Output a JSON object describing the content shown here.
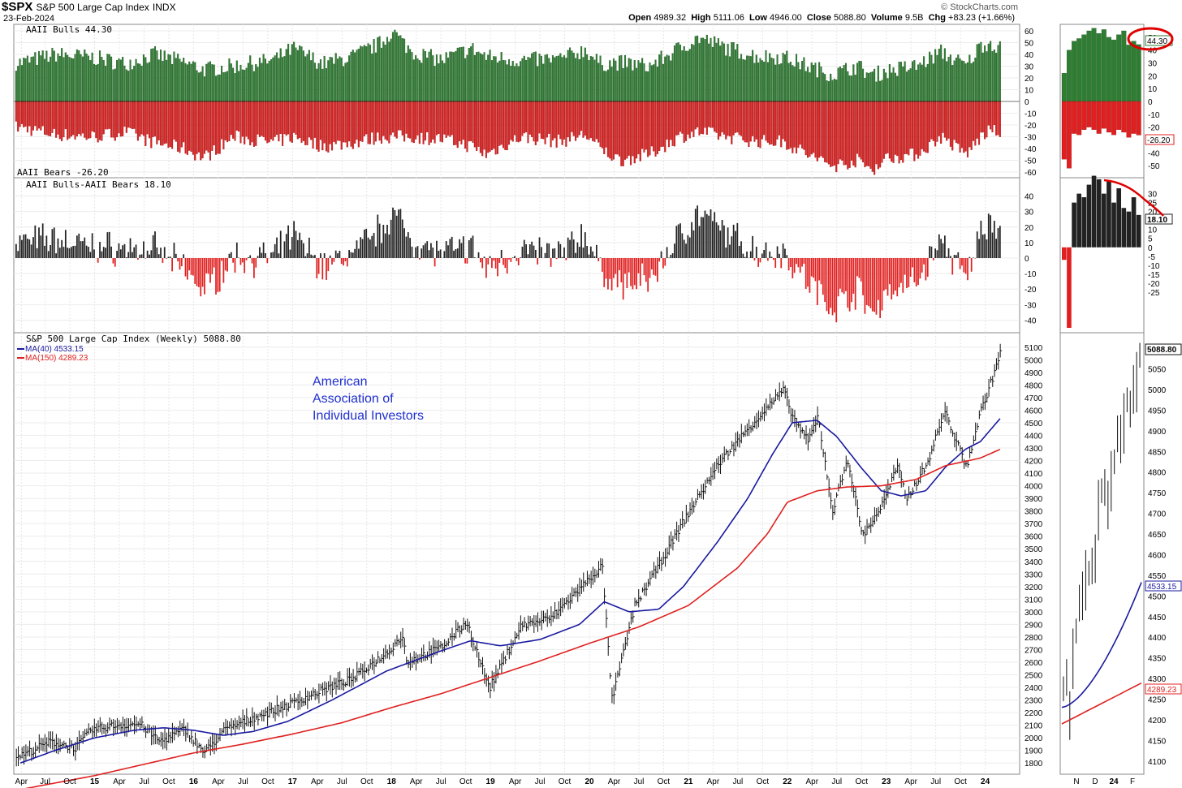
{
  "header": {
    "symbol": "$SPX",
    "name": "S&P 500 Large Cap Index",
    "exchange": "INDX",
    "date": "23-Feb-2024",
    "brand": "© StockCharts.com",
    "open_label": "Open",
    "open": "4989.32",
    "high_label": "High",
    "high": "5111.06",
    "low_label": "Low",
    "low": "4946.00",
    "close_label": "Close",
    "close": "5088.80",
    "volume_label": "Volume",
    "volume": "9.5B",
    "chg_label": "Chg",
    "chg": "+83.23 (+1.66%)"
  },
  "colors": {
    "bull": "#2e7d32",
    "bear": "#e02020",
    "spread_pos": "#222222",
    "ma40": "#1a1aa0",
    "ma150": "#e02020",
    "price": "#111111",
    "annotation": "#2030d0",
    "circle": "#e00000"
  },
  "annotation": [
    "American",
    "Association of",
    "Individual Investors"
  ],
  "chart_data": [
    {
      "type": "bar",
      "panel": "sentiment",
      "title": "AAII Bulls 44.30",
      "title2": "AAII Bears -26.20",
      "series": [
        {
          "name": "AAII Bulls",
          "last": 44.3,
          "anchors": [
            [
              2014.25,
              33
            ],
            [
              2014.6,
              40
            ],
            [
              2015.0,
              37
            ],
            [
              2015.3,
              32
            ],
            [
              2015.6,
              40
            ],
            [
              2015.9,
              33
            ],
            [
              2016.1,
              27
            ],
            [
              2016.4,
              30
            ],
            [
              2016.8,
              35
            ],
            [
              2017.0,
              45
            ],
            [
              2017.3,
              32
            ],
            [
              2017.6,
              38
            ],
            [
              2017.9,
              50
            ],
            [
              2018.0,
              60
            ],
            [
              2018.2,
              42
            ],
            [
              2018.5,
              35
            ],
            [
              2018.8,
              45
            ],
            [
              2018.95,
              38
            ],
            [
              2019.3,
              35
            ],
            [
              2019.7,
              36
            ],
            [
              2019.95,
              44
            ],
            [
              2020.1,
              32
            ],
            [
              2020.3,
              33
            ],
            [
              2020.6,
              30
            ],
            [
              2020.9,
              45
            ],
            [
              2021.1,
              54
            ],
            [
              2021.4,
              45
            ],
            [
              2021.7,
              38
            ],
            [
              2021.95,
              38
            ],
            [
              2022.2,
              30
            ],
            [
              2022.45,
              23
            ],
            [
              2022.7,
              30
            ],
            [
              2022.85,
              22
            ],
            [
              2023.0,
              26
            ],
            [
              2023.3,
              30
            ],
            [
              2023.55,
              42
            ],
            [
              2023.8,
              30
            ],
            [
              2023.95,
              48
            ],
            [
              2024.05,
              50
            ],
            [
              2024.15,
              44.3
            ]
          ]
        },
        {
          "name": "AAII Bears",
          "last": -26.2,
          "anchors": [
            [
              2014.25,
              -22
            ],
            [
              2014.6,
              -28
            ],
            [
              2015.0,
              -30
            ],
            [
              2015.3,
              -26
            ],
            [
              2015.6,
              -35
            ],
            [
              2015.9,
              -40
            ],
            [
              2016.1,
              -48
            ],
            [
              2016.4,
              -30
            ],
            [
              2016.8,
              -35
            ],
            [
              2017.0,
              -30
            ],
            [
              2017.3,
              -38
            ],
            [
              2017.6,
              -35
            ],
            [
              2017.9,
              -30
            ],
            [
              2018.2,
              -30
            ],
            [
              2018.5,
              -32
            ],
            [
              2018.8,
              -38
            ],
            [
              2018.95,
              -45
            ],
            [
              2019.3,
              -30
            ],
            [
              2019.7,
              -34
            ],
            [
              2019.95,
              -28
            ],
            [
              2020.1,
              -40
            ],
            [
              2020.3,
              -50
            ],
            [
              2020.6,
              -45
            ],
            [
              2020.9,
              -30
            ],
            [
              2021.1,
              -26
            ],
            [
              2021.4,
              -30
            ],
            [
              2021.7,
              -34
            ],
            [
              2021.95,
              -34
            ],
            [
              2022.2,
              -45
            ],
            [
              2022.45,
              -55
            ],
            [
              2022.7,
              -50
            ],
            [
              2022.85,
              -58
            ],
            [
              2023.0,
              -48
            ],
            [
              2023.3,
              -45
            ],
            [
              2023.55,
              -30
            ],
            [
              2023.8,
              -45
            ],
            [
              2023.95,
              -30
            ],
            [
              2024.05,
              -25
            ],
            [
              2024.15,
              -26.2
            ]
          ]
        }
      ],
      "ylim": [
        -60,
        60
      ],
      "yticks": [
        60,
        50,
        40,
        30,
        20,
        10,
        0,
        -10,
        -20,
        -30,
        -40,
        -50,
        -60
      ],
      "zoom_yticks": [
        50,
        40,
        30,
        20,
        10,
        0,
        -10,
        -20,
        -30,
        -40,
        -50
      ]
    },
    {
      "type": "bar",
      "panel": "spread",
      "title": "AAII Bulls-AAII Bears 18.10",
      "series": [
        {
          "name": "AAII Bulls-AAII Bears",
          "last": 18.1
        }
      ],
      "ylim": [
        -45,
        45
      ],
      "yticks": [
        40,
        30,
        20,
        10,
        0,
        -10,
        -20,
        -30,
        -40
      ],
      "zoom_yticks": [
        30,
        25,
        20,
        15,
        10,
        5,
        0,
        -5,
        -10,
        -15,
        -20,
        -25
      ],
      "zoom_values": [
        -7,
        -45,
        25,
        30,
        28,
        35,
        40,
        38,
        30,
        37,
        25,
        33,
        22,
        20,
        28,
        18.1
      ]
    },
    {
      "type": "line",
      "panel": "price",
      "title": "S&P 500 Large Cap Index (Weekly) 5088.80",
      "series": [
        {
          "name": "MA(40)",
          "label": "MA(40) 4533.15",
          "last": 4533.15,
          "anchors": [
            [
              2014.25,
              1800
            ],
            [
              2014.6,
              1900
            ],
            [
              2015.0,
              2000
            ],
            [
              2015.4,
              2060
            ],
            [
              2015.7,
              2080
            ],
            [
              2016.0,
              2060
            ],
            [
              2016.3,
              2020
            ],
            [
              2016.6,
              2050
            ],
            [
              2016.95,
              2130
            ],
            [
              2017.4,
              2300
            ],
            [
              2017.95,
              2530
            ],
            [
              2018.5,
              2690
            ],
            [
              2018.8,
              2770
            ],
            [
              2019.1,
              2730
            ],
            [
              2019.5,
              2780
            ],
            [
              2019.9,
              2900
            ],
            [
              2020.15,
              3080
            ],
            [
              2020.4,
              3000
            ],
            [
              2020.7,
              3020
            ],
            [
              2020.95,
              3200
            ],
            [
              2021.3,
              3560
            ],
            [
              2021.6,
              3900
            ],
            [
              2021.85,
              4250
            ],
            [
              2022.05,
              4500
            ],
            [
              2022.3,
              4520
            ],
            [
              2022.5,
              4390
            ],
            [
              2022.75,
              4140
            ],
            [
              2022.95,
              3960
            ],
            [
              2023.15,
              3920
            ],
            [
              2023.4,
              3960
            ],
            [
              2023.6,
              4150
            ],
            [
              2023.8,
              4290
            ],
            [
              2023.95,
              4350
            ],
            [
              2024.15,
              4533
            ]
          ]
        },
        {
          "name": "MA(150)",
          "label": "MA(150) 4289.23",
          "last": 4289.23,
          "anchors": [
            [
              2014.25,
              1590
            ],
            [
              2015.0,
              1700
            ],
            [
              2015.5,
              1790
            ],
            [
              2016.0,
              1880
            ],
            [
              2016.5,
              1950
            ],
            [
              2017.0,
              2030
            ],
            [
              2017.5,
              2120
            ],
            [
              2018.0,
              2240
            ],
            [
              2018.5,
              2350
            ],
            [
              2019.0,
              2480
            ],
            [
              2019.5,
              2610
            ],
            [
              2020.0,
              2750
            ],
            [
              2020.5,
              2880
            ],
            [
              2021.0,
              3050
            ],
            [
              2021.5,
              3350
            ],
            [
              2021.8,
              3620
            ],
            [
              2022.0,
              3870
            ],
            [
              2022.3,
              3960
            ],
            [
              2022.6,
              3990
            ],
            [
              2022.95,
              4000
            ],
            [
              2023.3,
              4050
            ],
            [
              2023.6,
              4160
            ],
            [
              2023.95,
              4220
            ],
            [
              2024.15,
              4289
            ]
          ]
        },
        {
          "name": "Price",
          "last": 5088.8,
          "anchors": [
            [
              2014.25,
              1860
            ],
            [
              2014.55,
              1970
            ],
            [
              2014.8,
              1920
            ],
            [
              2014.95,
              2060
            ],
            [
              2015.2,
              2100
            ],
            [
              2015.45,
              2110
            ],
            [
              2015.65,
              1970
            ],
            [
              2015.9,
              2070
            ],
            [
              2016.1,
              1880
            ],
            [
              2016.3,
              2060
            ],
            [
              2016.6,
              2160
            ],
            [
              2016.95,
              2260
            ],
            [
              2017.3,
              2380
            ],
            [
              2017.6,
              2470
            ],
            [
              2017.95,
              2680
            ],
            [
              2018.1,
              2810
            ],
            [
              2018.15,
              2600
            ],
            [
              2018.5,
              2720
            ],
            [
              2018.75,
              2920
            ],
            [
              2018.98,
              2390
            ],
            [
              2019.3,
              2890
            ],
            [
              2019.6,
              2950
            ],
            [
              2019.95,
              3230
            ],
            [
              2020.12,
              3370
            ],
            [
              2020.22,
              2300
            ],
            [
              2020.45,
              3050
            ],
            [
              2020.7,
              3380
            ],
            [
              2020.95,
              3730
            ],
            [
              2021.3,
              4180
            ],
            [
              2021.6,
              4460
            ],
            [
              2021.95,
              4760
            ],
            [
              2022.05,
              4540
            ],
            [
              2022.2,
              4350
            ],
            [
              2022.3,
              4550
            ],
            [
              2022.45,
              3800
            ],
            [
              2022.6,
              4220
            ],
            [
              2022.75,
              3600
            ],
            [
              2022.95,
              3850
            ],
            [
              2023.1,
              4150
            ],
            [
              2023.2,
              3900
            ],
            [
              2023.4,
              4170
            ],
            [
              2023.58,
              4590
            ],
            [
              2023.8,
              4150
            ],
            [
              2023.95,
              4600
            ],
            [
              2024.08,
              4890
            ],
            [
              2024.15,
              5088
            ]
          ]
        }
      ],
      "ylim": [
        1750,
        5150
      ],
      "yticks": [
        1800,
        1900,
        2000,
        2100,
        2200,
        2300,
        2400,
        2500,
        2600,
        2700,
        2800,
        2900,
        3000,
        3100,
        3200,
        3300,
        3400,
        3500,
        3600,
        3700,
        3800,
        3900,
        4000,
        4100,
        4200,
        4300,
        4400,
        4500,
        4600,
        4700,
        4800,
        4900,
        5000,
        5100
      ],
      "zoom_yticks": [
        4100,
        4150,
        4200,
        4250,
        4300,
        4350,
        4400,
        4450,
        4500,
        4550,
        4600,
        4650,
        4700,
        4750,
        4800,
        4850,
        4900,
        4950,
        5000,
        5050
      ],
      "zoom_top_tick": "5100",
      "zoom_price": [
        4280,
        4310,
        4220,
        4360,
        4420,
        4490,
        4510,
        4550,
        4560,
        4580,
        4600,
        4720,
        4760,
        4770,
        4730,
        4790,
        4830,
        4900,
        4890,
        4930,
        4980,
        4960,
        5010,
        5030,
        5088
      ]
    }
  ],
  "x_axis": {
    "labels": [
      {
        "t": 2014.26,
        "l": "Apr"
      },
      {
        "t": 2014.5,
        "l": "Jul"
      },
      {
        "t": 2014.75,
        "l": "Oct"
      },
      {
        "t": 2015.0,
        "l": "15",
        "bold": true
      },
      {
        "t": 2015.25,
        "l": "Apr"
      },
      {
        "t": 2015.5,
        "l": "Jul"
      },
      {
        "t": 2015.75,
        "l": "Oct"
      },
      {
        "t": 2016.0,
        "l": "16",
        "bold": true
      },
      {
        "t": 2016.25,
        "l": "Apr"
      },
      {
        "t": 2016.5,
        "l": "Jul"
      },
      {
        "t": 2016.75,
        "l": "Oct"
      },
      {
        "t": 2017.0,
        "l": "17",
        "bold": true
      },
      {
        "t": 2017.25,
        "l": "Apr"
      },
      {
        "t": 2017.5,
        "l": "Jul"
      },
      {
        "t": 2017.75,
        "l": "Oct"
      },
      {
        "t": 2018.0,
        "l": "18",
        "bold": true
      },
      {
        "t": 2018.25,
        "l": "Apr"
      },
      {
        "t": 2018.5,
        "l": "Jul"
      },
      {
        "t": 2018.75,
        "l": "Oct"
      },
      {
        "t": 2019.0,
        "l": "19",
        "bold": true
      },
      {
        "t": 2019.25,
        "l": "Apr"
      },
      {
        "t": 2019.5,
        "l": "Jul"
      },
      {
        "t": 2019.75,
        "l": "Oct"
      },
      {
        "t": 2020.0,
        "l": "20",
        "bold": true
      },
      {
        "t": 2020.25,
        "l": "Apr"
      },
      {
        "t": 2020.5,
        "l": "Jul"
      },
      {
        "t": 2020.75,
        "l": "Oct"
      },
      {
        "t": 2021.0,
        "l": "21",
        "bold": true
      },
      {
        "t": 2021.25,
        "l": "Apr"
      },
      {
        "t": 2021.5,
        "l": "Jul"
      },
      {
        "t": 2021.75,
        "l": "Oct"
      },
      {
        "t": 2022.0,
        "l": "22",
        "bold": true
      },
      {
        "t": 2022.25,
        "l": "Apr"
      },
      {
        "t": 2022.5,
        "l": "Jul"
      },
      {
        "t": 2022.75,
        "l": "Oct"
      },
      {
        "t": 2023.0,
        "l": "23",
        "bold": true
      },
      {
        "t": 2023.25,
        "l": "Apr"
      },
      {
        "t": 2023.5,
        "l": "Jul"
      },
      {
        "t": 2023.75,
        "l": "Oct"
      },
      {
        "t": 2024.0,
        "l": "24",
        "bold": true
      }
    ],
    "range": [
      2014.2,
      2024.2
    ],
    "zoom_labels": [
      {
        "l": "N"
      },
      {
        "l": "D"
      },
      {
        "l": "24",
        "bold": true
      },
      {
        "l": "F"
      }
    ]
  },
  "tags": {
    "bulls": "44.30",
    "bears": "-26.20",
    "spread": "18.10",
    "close": "5088.80",
    "ma40": "4533.15",
    "ma150": "4289.23"
  }
}
